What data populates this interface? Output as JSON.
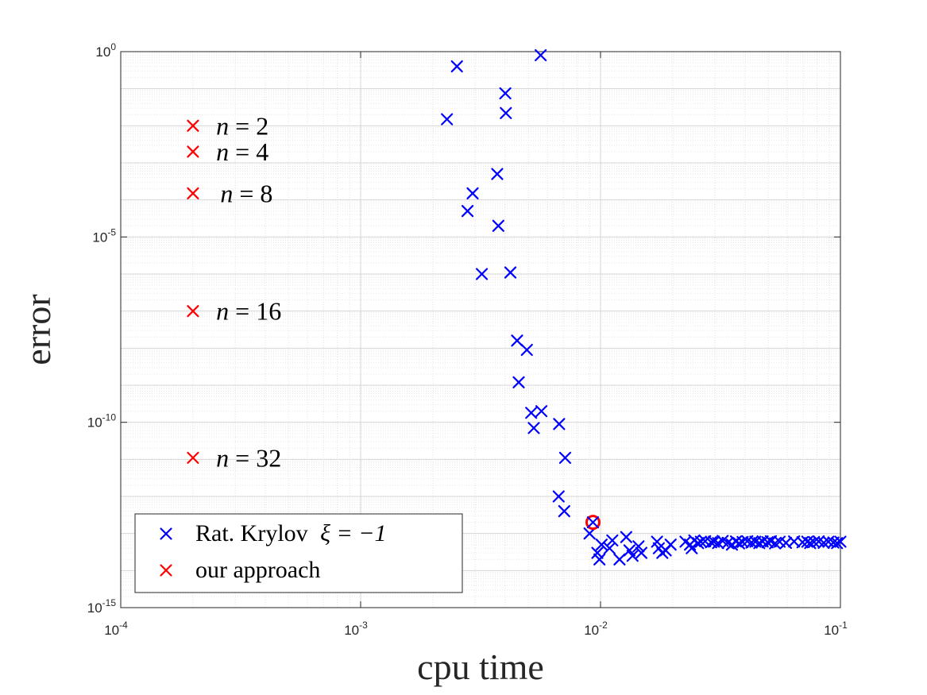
{
  "chart_data": {
    "type": "scatter",
    "xscale": "log",
    "yscale": "log",
    "xlim": [
      0.0001,
      0.1
    ],
    "ylim": [
      1e-15,
      1
    ],
    "xticks": [
      {
        "value": 0.0001,
        "base": "10",
        "exp": "-4"
      },
      {
        "value": 0.001,
        "base": "10",
        "exp": "-3"
      },
      {
        "value": 0.01,
        "base": "10",
        "exp": "-2"
      },
      {
        "value": 0.1,
        "base": "10",
        "exp": "-1"
      }
    ],
    "yticks": [
      {
        "value": 1,
        "base": "10",
        "exp": "0"
      },
      {
        "value": 1e-05,
        "base": "10",
        "exp": "-5"
      },
      {
        "value": 1e-10,
        "base": "10",
        "exp": "-10"
      },
      {
        "value": 1e-15,
        "base": "10",
        "exp": "-15"
      }
    ],
    "grid": true,
    "xlabel": "cpu time",
    "ylabel": "error",
    "legend_position": "bottom-left",
    "series": [
      {
        "name": "Rat. Krylov ξ = −1",
        "legend_label": "Rat. Krylov",
        "legend_math": "ξ = −1",
        "color": "#0000ff",
        "marker": "x",
        "points": [
          [
            0.00229,
            0.015
          ],
          [
            0.00252,
            0.4
          ],
          [
            0.00279,
            5e-05
          ],
          [
            0.00293,
            0.00015
          ],
          [
            0.0032,
            1e-06
          ],
          [
            0.00371,
            0.0005
          ],
          [
            0.00375,
            2e-05
          ],
          [
            0.00401,
            0.075
          ],
          [
            0.00403,
            0.022
          ],
          [
            0.00421,
            1.1e-06
          ],
          [
            0.00449,
            1.6e-08
          ],
          [
            0.00456,
            1.2e-09
          ],
          [
            0.00493,
            9e-09
          ],
          [
            0.00514,
            1.8e-10
          ],
          [
            0.00527,
            7e-11
          ],
          [
            0.00563,
            0.8
          ],
          [
            0.00567,
            2e-10
          ],
          [
            0.00669,
            1e-12
          ],
          [
            0.00672,
            9e-11
          ],
          [
            0.00706,
            4e-13
          ],
          [
            0.00712,
            1.1e-11
          ],
          [
            0.009,
            1e-13
          ],
          [
            0.0097,
            3e-14
          ],
          [
            0.0099,
            2e-14
          ],
          [
            0.0101,
            5e-14
          ],
          [
            0.0109,
            4e-14
          ],
          [
            0.0112,
            6.5e-14
          ],
          [
            0.012,
            2e-14
          ],
          [
            0.0128,
            8e-14
          ],
          [
            0.0132,
            3.5e-14
          ],
          [
            0.0136,
            2.5e-14
          ],
          [
            0.0144,
            4.5e-14
          ],
          [
            0.0148,
            3e-14
          ],
          [
            0.0172,
            6e-14
          ],
          [
            0.0175,
            4e-14
          ],
          [
            0.0181,
            3e-14
          ],
          [
            0.0187,
            3.5e-14
          ],
          [
            0.0196,
            5e-14
          ],
          [
            0.0226,
            6e-14
          ],
          [
            0.0236,
            5e-14
          ],
          [
            0.024,
            4e-14
          ],
          [
            0.0246,
            6.5e-14
          ],
          [
            0.0255,
            5.5e-14
          ],
          [
            0.0262,
            6e-14
          ],
          [
            0.0273,
            6.2e-14
          ],
          [
            0.0289,
            5.8e-14
          ],
          [
            0.0297,
            6e-14
          ],
          [
            0.0309,
            5.5e-14
          ],
          [
            0.0323,
            6.3e-14
          ],
          [
            0.0339,
            5.6e-14
          ],
          [
            0.0353,
            5e-14
          ],
          [
            0.0367,
            6.1e-14
          ],
          [
            0.0378,
            5.4e-14
          ],
          [
            0.0391,
            5.9e-14
          ],
          [
            0.0409,
            6.2e-14
          ],
          [
            0.0426,
            5.7e-14
          ],
          [
            0.0442,
            6e-14
          ],
          [
            0.0459,
            5.5e-14
          ],
          [
            0.0474,
            6.1e-14
          ],
          [
            0.0497,
            5.8e-14
          ],
          [
            0.0513,
            6.2e-14
          ],
          [
            0.0534,
            5.4e-14
          ],
          [
            0.0558,
            6e-14
          ],
          [
            0.0593,
            5.6e-14
          ],
          [
            0.0641,
            6.1e-14
          ],
          [
            0.0695,
            5.8e-14
          ],
          [
            0.0728,
            6e-14
          ],
          [
            0.0748,
            5.5e-14
          ],
          [
            0.0776,
            5.9e-14
          ],
          [
            0.0812,
            6.1e-14
          ],
          [
            0.0852,
            5.6e-14
          ],
          [
            0.0891,
            6e-14
          ],
          [
            0.0935,
            5.7e-14
          ],
          [
            0.0968,
            5.5e-14
          ],
          [
            0.1,
            6e-14
          ]
        ]
      },
      {
        "name": "our approach",
        "legend_label": "our approach",
        "color": "#ff0000",
        "marker": "x",
        "points": [
          [
            0.0002,
            0.01
          ],
          [
            0.0002,
            0.002
          ],
          [
            0.0002,
            0.00015
          ],
          [
            0.0002,
            1e-07
          ],
          [
            0.0002,
            1.1e-11
          ]
        ]
      }
    ],
    "annotations": [
      {
        "text_italic": "n",
        "text": " = 2",
        "x": 0.00025,
        "y": 0.01
      },
      {
        "text_italic": "n",
        "text": " = 4",
        "x": 0.00025,
        "y": 0.002
      },
      {
        "text_italic": "n",
        "text": " = 8",
        "x": 0.00026,
        "y": 0.00015
      },
      {
        "text_italic": "n",
        "text": " = 16",
        "x": 0.00025,
        "y": 1e-07
      },
      {
        "text_italic": "n",
        "text": " = 32",
        "x": 0.00025,
        "y": 1.1e-11
      }
    ],
    "highlight": {
      "marker": "circle",
      "color": "#ff0000",
      "x": 0.0093,
      "y": 2e-13
    }
  }
}
